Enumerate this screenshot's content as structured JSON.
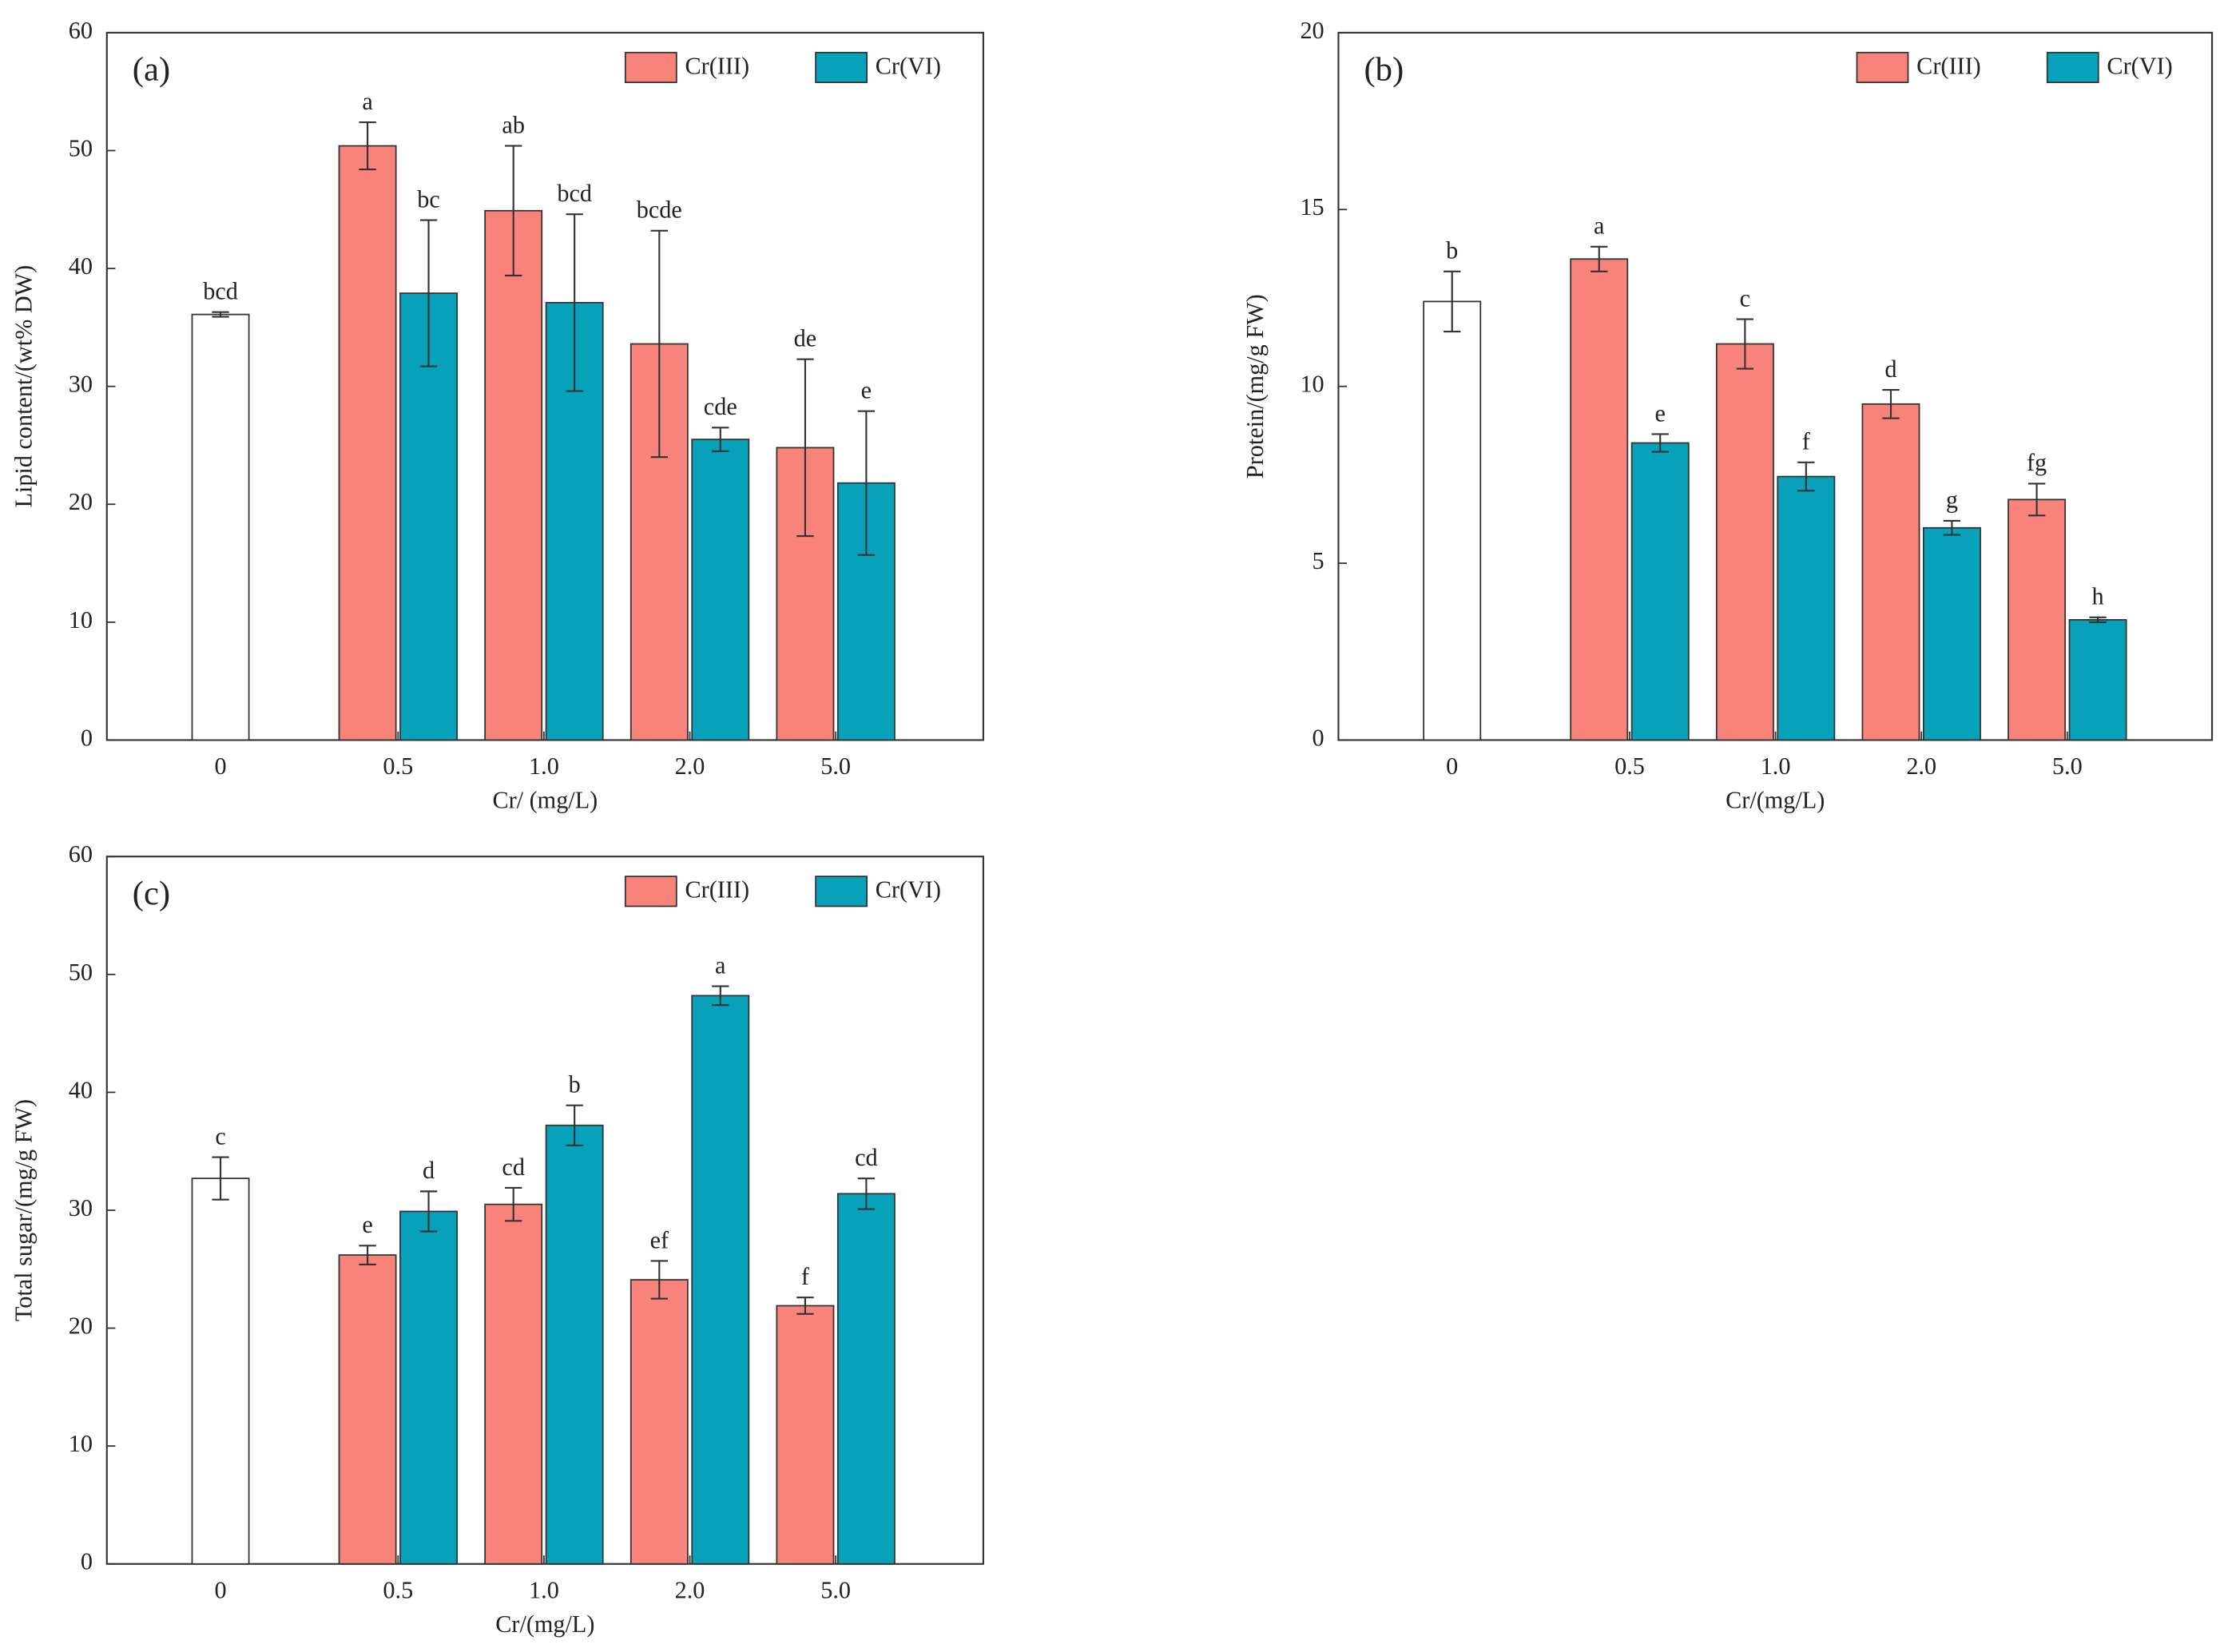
{
  "chart_data": [
    {
      "type": "bar",
      "panel": "(a)",
      "x_label": "Cr/ (mg/L)",
      "y_label": "Lipid content/(wt% DW)",
      "categories": [
        "0",
        "0.5",
        "1.0",
        "2.0",
        "5.0"
      ],
      "ylim": [
        0,
        60
      ],
      "yticks": [
        0,
        10,
        20,
        30,
        40,
        50,
        60
      ],
      "series": [
        {
          "color": "#ffffff",
          "values": [
            36.1,
            null,
            null,
            null,
            null
          ],
          "errors": [
            0.2,
            null,
            null,
            null,
            null
          ],
          "letters": [
            "bcd",
            null,
            null,
            null,
            null
          ]
        },
        {
          "name": "Cr(III)",
          "color": "#f7837b",
          "values": [
            null,
            50.4,
            44.9,
            33.6,
            24.8
          ],
          "errors": [
            null,
            2.0,
            5.5,
            9.6,
            7.5
          ],
          "letters": [
            null,
            "a",
            "ab",
            "bcde",
            "de"
          ]
        },
        {
          "name": "Cr(VI)",
          "color": "#07a2b9",
          "values": [
            null,
            37.9,
            37.1,
            25.5,
            21.8
          ],
          "errors": [
            null,
            6.2,
            7.5,
            1.0,
            6.1
          ],
          "letters": [
            null,
            "bc",
            "bcd",
            "cde",
            "e"
          ]
        }
      ]
    },
    {
      "type": "bar",
      "panel": "(b)",
      "x_label": "Cr/(mg/L)",
      "y_label": "Protein/(mg/g FW)",
      "categories": [
        "0",
        "0.5",
        "1.0",
        "2.0",
        "5.0"
      ],
      "ylim": [
        0,
        20
      ],
      "yticks": [
        0,
        5,
        10,
        15,
        20
      ],
      "series": [
        {
          "color": "#ffffff",
          "values": [
            12.4,
            null,
            null,
            null,
            null
          ],
          "errors": [
            0.85,
            null,
            null,
            null,
            null
          ],
          "letters": [
            "b",
            null,
            null,
            null,
            null
          ]
        },
        {
          "name": "Cr(III)",
          "color": "#f7837b",
          "values": [
            null,
            13.6,
            11.2,
            9.5,
            6.8
          ],
          "errors": [
            null,
            0.35,
            0.7,
            0.4,
            0.45
          ],
          "letters": [
            null,
            "a",
            "c",
            "d",
            "fg"
          ]
        },
        {
          "name": "Cr(VI)",
          "color": "#07a2b9",
          "values": [
            null,
            8.4,
            7.45,
            6.0,
            3.4
          ],
          "errors": [
            null,
            0.25,
            0.4,
            0.2,
            0.07
          ],
          "letters": [
            null,
            "e",
            "f",
            "g",
            "h"
          ]
        }
      ]
    },
    {
      "type": "bar",
      "panel": "(c)",
      "x_label": "Cr/(mg/L)",
      "y_label": "Total sugar/(mg/g FW)",
      "categories": [
        "0",
        "0.5",
        "1.0",
        "2.0",
        "5.0"
      ],
      "ylim": [
        0,
        60
      ],
      "yticks": [
        0,
        10,
        20,
        30,
        40,
        50,
        60
      ],
      "series": [
        {
          "color": "#ffffff",
          "values": [
            32.7,
            null,
            null,
            null,
            null
          ],
          "errors": [
            1.8,
            null,
            null,
            null,
            null
          ],
          "letters": [
            "c",
            null,
            null,
            null,
            null
          ]
        },
        {
          "name": "Cr(III)",
          "color": "#f7837b",
          "values": [
            null,
            26.2,
            30.5,
            24.1,
            21.9
          ],
          "errors": [
            null,
            0.8,
            1.4,
            1.6,
            0.7
          ],
          "letters": [
            null,
            "e",
            "cd",
            "ef",
            "f"
          ]
        },
        {
          "name": "Cr(VI)",
          "color": "#07a2b9",
          "values": [
            null,
            29.9,
            37.2,
            48.2,
            31.4
          ],
          "errors": [
            null,
            1.7,
            1.7,
            0.8,
            1.3
          ],
          "letters": [
            null,
            "d",
            "b",
            "a",
            "cd"
          ]
        }
      ]
    }
  ]
}
